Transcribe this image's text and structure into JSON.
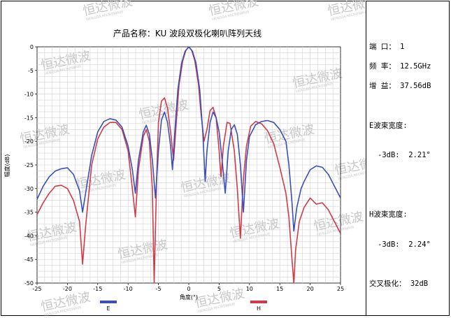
{
  "watermark": {
    "text": "恒达微波",
    "subtext": "HENGDA MICROWAVE"
  },
  "chart_data": {
    "type": "line",
    "title": "产品名称：KU 波段双极化喇叭阵列天线",
    "xlabel": "角度(°)",
    "ylabel": "幅度(dB)",
    "xlim": [
      -25,
      25
    ],
    "ylim": [
      -50,
      0
    ],
    "xticks": [
      -25,
      -20,
      -15,
      -10,
      -5,
      0,
      5,
      10,
      15,
      20,
      25
    ],
    "yticks": [
      0,
      -5,
      -10,
      -15,
      -20,
      -25,
      -30,
      -35,
      -40,
      -45,
      -50
    ],
    "grid": true,
    "legend_position": "bottom",
    "series": [
      {
        "name": "E",
        "color": "#3a4fb8",
        "points": [
          [
            -25,
            -32.3
          ],
          [
            -24,
            -29.5
          ],
          [
            -23,
            -27.5
          ],
          [
            -22,
            -26.3
          ],
          [
            -21,
            -25.8
          ],
          [
            -20,
            -25.6
          ],
          [
            -19,
            -27.0
          ],
          [
            -18,
            -30.5
          ],
          [
            -17.5,
            -35.0
          ],
          [
            -17,
            -31.0
          ],
          [
            -16,
            -23.0
          ],
          [
            -15,
            -18.0
          ],
          [
            -14,
            -15.8
          ],
          [
            -13,
            -15.2
          ],
          [
            -12,
            -15.5
          ],
          [
            -11,
            -17.0
          ],
          [
            -10,
            -21.0
          ],
          [
            -9.3,
            -26.0
          ],
          [
            -8.8,
            -31.0
          ],
          [
            -8.3,
            -24.0
          ],
          [
            -7.5,
            -18.0
          ],
          [
            -7.0,
            -16.6
          ],
          [
            -6.5,
            -18.5
          ],
          [
            -6.0,
            -24.0
          ],
          [
            -5.5,
            -32.0
          ],
          [
            -5.0,
            -22.0
          ],
          [
            -4.5,
            -15.5
          ],
          [
            -4.0,
            -13.8
          ],
          [
            -3.5,
            -16.0
          ],
          [
            -3.0,
            -21.0
          ],
          [
            -2.7,
            -26.0
          ],
          [
            -2.3,
            -18.0
          ],
          [
            -1.8,
            -9.0
          ],
          [
            -1.2,
            -3.5
          ],
          [
            -0.6,
            -0.9
          ],
          [
            0,
            0
          ],
          [
            0.6,
            -0.9
          ],
          [
            1.2,
            -3.5
          ],
          [
            1.8,
            -9.0
          ],
          [
            2.3,
            -18.0
          ],
          [
            2.7,
            -28.5
          ],
          [
            3.0,
            -22.0
          ],
          [
            3.5,
            -16.0
          ],
          [
            4.0,
            -13.8
          ],
          [
            4.5,
            -15.0
          ],
          [
            5.0,
            -18.0
          ],
          [
            5.5,
            -24.0
          ],
          [
            6.0,
            -31.0
          ],
          [
            6.5,
            -22.0
          ],
          [
            7.0,
            -17.5
          ],
          [
            7.5,
            -16.5
          ],
          [
            8.0,
            -18.5
          ],
          [
            8.5,
            -25.0
          ],
          [
            9.0,
            -35.0
          ],
          [
            9.5,
            -24.0
          ],
          [
            10.0,
            -19.0
          ],
          [
            11,
            -16.5
          ],
          [
            12,
            -15.8
          ],
          [
            13,
            -15.6
          ],
          [
            14,
            -16.0
          ],
          [
            15,
            -17.5
          ],
          [
            16,
            -20.0
          ],
          [
            16.5,
            -25.0
          ],
          [
            17.0,
            -33.0
          ],
          [
            17.3,
            -39.0
          ],
          [
            17.8,
            -34.0
          ],
          [
            18.5,
            -30.0
          ],
          [
            19,
            -28.5
          ],
          [
            20,
            -26.0
          ],
          [
            21,
            -25.2
          ],
          [
            22,
            -25.5
          ],
          [
            23,
            -27.0
          ],
          [
            24,
            -29.5
          ],
          [
            25,
            -32.0
          ]
        ]
      },
      {
        "name": "H",
        "color": "#d13a48",
        "points": [
          [
            -25,
            -35.5
          ],
          [
            -24,
            -33.0
          ],
          [
            -23,
            -31.0
          ],
          [
            -22,
            -29.5
          ],
          [
            -21,
            -29.3
          ],
          [
            -20,
            -30.0
          ],
          [
            -19,
            -32.5
          ],
          [
            -18,
            -37.0
          ],
          [
            -17.5,
            -46.0
          ],
          [
            -17,
            -38.0
          ],
          [
            -16,
            -25.0
          ],
          [
            -15,
            -19.5
          ],
          [
            -14,
            -17.0
          ],
          [
            -13,
            -16.0
          ],
          [
            -12,
            -16.0
          ],
          [
            -11,
            -17.5
          ],
          [
            -10,
            -22.0
          ],
          [
            -9.3,
            -30.0
          ],
          [
            -8.8,
            -36.0
          ],
          [
            -8.3,
            -26.0
          ],
          [
            -7.5,
            -19.0
          ],
          [
            -7.0,
            -17.5
          ],
          [
            -6.5,
            -20.0
          ],
          [
            -6.0,
            -30.0
          ],
          [
            -5.7,
            -50.0
          ],
          [
            -5.3,
            -28.0
          ],
          [
            -5.0,
            -16.0
          ],
          [
            -4.5,
            -11.5
          ],
          [
            -4.0,
            -10.8
          ],
          [
            -3.5,
            -13.0
          ],
          [
            -3.0,
            -18.0
          ],
          [
            -2.5,
            -24.0
          ],
          [
            -2.0,
            -15.0
          ],
          [
            -1.6,
            -8.0
          ],
          [
            -1.0,
            -3.0
          ],
          [
            -0.5,
            -0.8
          ],
          [
            0,
            0
          ],
          [
            0.5,
            -0.8
          ],
          [
            1.0,
            -3.0
          ],
          [
            1.6,
            -8.0
          ],
          [
            2.0,
            -14.0
          ],
          [
            2.5,
            -20.0
          ],
          [
            3.0,
            -17.5
          ],
          [
            3.5,
            -13.5
          ],
          [
            4.0,
            -12.8
          ],
          [
            4.5,
            -15.0
          ],
          [
            5.0,
            -22.0
          ],
          [
            5.3,
            -27.5
          ],
          [
            5.7,
            -21.0
          ],
          [
            6.3,
            -16.0
          ],
          [
            6.8,
            -16.2
          ],
          [
            7.5,
            -22.0
          ],
          [
            8.0,
            -30.0
          ],
          [
            8.5,
            -40.5
          ],
          [
            9.0,
            -28.0
          ],
          [
            9.5,
            -21.0
          ],
          [
            10.2,
            -16.8
          ],
          [
            11,
            -15.8
          ],
          [
            12,
            -16.3
          ],
          [
            13,
            -17.8
          ],
          [
            14,
            -20.5
          ],
          [
            15,
            -25.5
          ],
          [
            16,
            -31.0
          ],
          [
            16.5,
            -36.0
          ],
          [
            17.0,
            -45.0
          ],
          [
            17.3,
            -50.0
          ],
          [
            17.6,
            -43.0
          ],
          [
            18.2,
            -37.0
          ],
          [
            19,
            -34.0
          ],
          [
            20,
            -32.0
          ],
          [
            21,
            -33.3
          ],
          [
            22,
            -33.0
          ],
          [
            23,
            -34.5
          ],
          [
            24,
            -37.0
          ],
          [
            25,
            -39.5
          ]
        ]
      }
    ]
  },
  "specs": {
    "port": "端 口： 1",
    "frequency": "频 率： 12.5GHz",
    "gain": "增 益： 37.56dB",
    "e_beamwidth_label": "E波束宽度:",
    "e_beamwidth_value": "-3dB:  2.21°",
    "h_beamwidth_label": "H波束宽度:",
    "h_beamwidth_value": "-3dB:  2.24°",
    "cross_pol": "交叉极化： 32dB"
  },
  "colors": {
    "grid": "#d2d2d2",
    "plot_bg": "#ffffff",
    "e_series": "#3a4fb8",
    "h_series": "#d13a48"
  }
}
